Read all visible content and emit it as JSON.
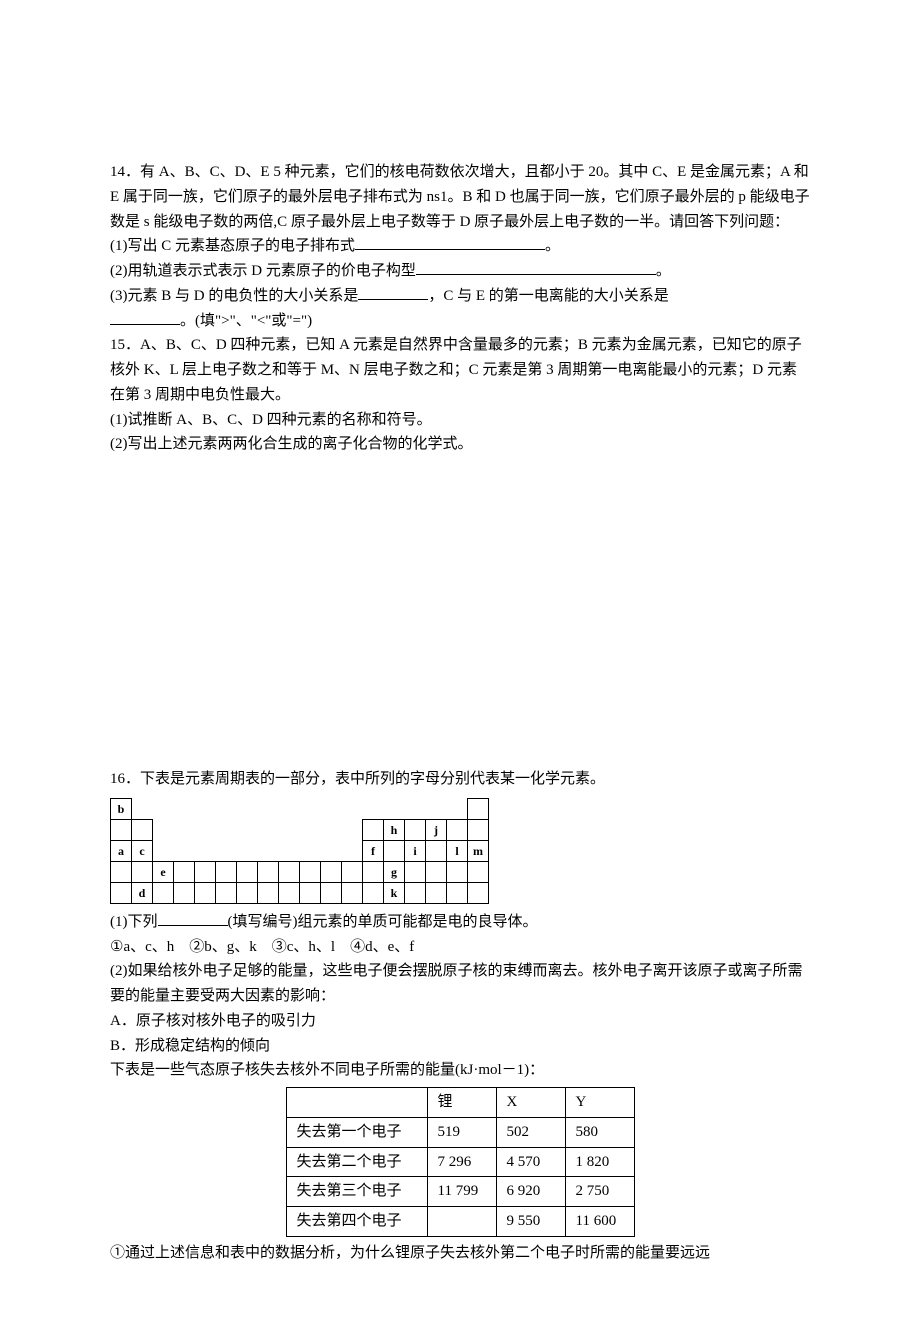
{
  "q14": {
    "stem1": "14．有 A、B、C、D、E 5 种元素，它们的核电荷数依次增大，且都小于 20。其中 C、E 是金属元素；A 和 E 属于同一族，它们原子的最外层电子排布式为 ns1。B 和 D 也属于同一族，它们原子最外层的 p 能级电子数是 s 能级电子数的两倍,C 原子最外层上电子数等于 D 原子最外层上电子数的一半。请回答下列问题：",
    "sub1_pre": "(1)写出 C 元素基态原子的电子排布式",
    "sub1_post": "。",
    "sub2_pre": "(2)用轨道表示式表示 D 元素原子的价电子构型",
    "sub2_post": "。",
    "sub3_pre": "(3)元素 B 与 D 的电负性的大小关系是",
    "sub3_mid": "，C 与 E 的第一电离能的大小关系是",
    "sub3_post": "。(填\">\"、\"<\"或\"=\")"
  },
  "q15": {
    "stem1": "15．A、B、C、D 四种元素，已知 A 元素是自然界中含量最多的元素；B 元素为金属元素，已知它的原子核外 K、L 层上电子数之和等于 M、N 层电子数之和；C 元素是第 3 周期第一电离能最小的元素；D 元素在第 3 周期中电负性最大。",
    "sub1": "(1)试推断 A、B、C、D 四种元素的名称和符号。",
    "sub2": "(2)写出上述元素两两化合生成的离子化合物的化学式。"
  },
  "q16": {
    "stem1": "16．下表是元素周期表的一部分，表中所列的字母分别代表某一化学元素。",
    "periodic_cells": {
      "r0c0": "b",
      "r1c13": "h",
      "r1c15": "j",
      "r2c0": "a",
      "r2c1": "c",
      "r2c12": "f",
      "r2c14": "i",
      "r2c16": "l",
      "r2c17": "m",
      "r3c2": "e",
      "r3c13": "g",
      "r4c1": "d",
      "r4c13": "k"
    },
    "sub1_pre": "(1)下列",
    "sub1_post": "(填写编号)组元素的单质可能都是电的良导体。",
    "sub1_options": "①a、c、h　②b、g、k　③c、h、l　④d、e、f",
    "sub2_stem": "(2)如果给核外电子足够的能量，这些电子便会摆脱原子核的束缚而离去。核外电子离开该原子或离子所需要的能量主要受两大因素的影响：",
    "sub2_A": "A．原子核对核外电子的吸引力",
    "sub2_B": "B．形成稳定结构的倾向",
    "sub2_table_lead": "下表是一些气态原子核失去核外不同电子所需的能量(kJ·mol－1)：",
    "table": {
      "cols": [
        "",
        "锂",
        "X",
        "Y"
      ],
      "rows": [
        [
          "失去第一个电子",
          "519",
          "502",
          "580"
        ],
        [
          "失去第二个电子",
          "7 296",
          "4 570",
          "1 820"
        ],
        [
          "失去第三个电子",
          "11 799",
          "6 920",
          "2 750"
        ],
        [
          "失去第四个电子",
          "",
          "9 550",
          "11 600"
        ]
      ]
    },
    "sub2_q1": "①通过上述信息和表中的数据分析，为什么锂原子失去核外第二个电子时所需的能量要远远"
  }
}
